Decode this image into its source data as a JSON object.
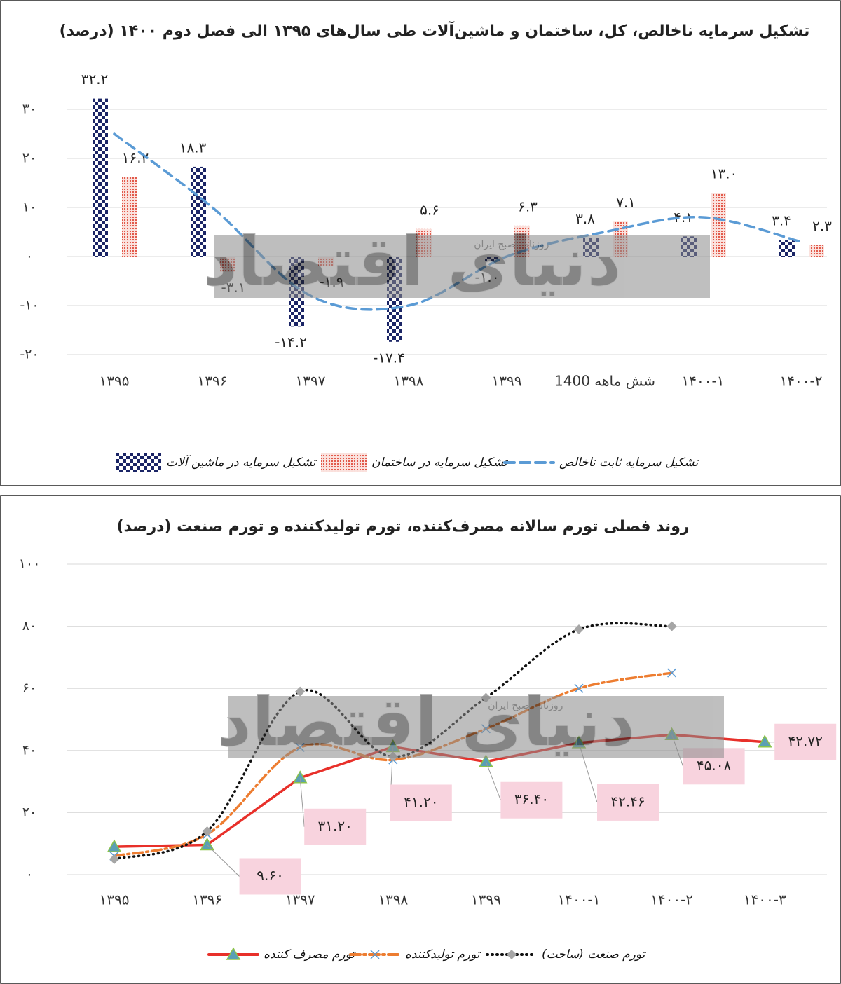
{
  "chart_data": [
    {
      "type": "bar",
      "title": "تشکیل سرمایه ناخالص، کل، ساختمان و ماشین‌آلات طی سال‌های ۱۳۹۵ الی فصل دوم ۱۴۰۰ (درصد)",
      "categories": [
        "۱۳۹۵",
        "۱۳۹۶",
        "۱۳۹۷",
        "۱۳۹۸",
        "۱۳۹۹",
        "شش ماهه 1400",
        "۱۴۰۰-۱",
        "۱۴۰۰-۲"
      ],
      "series": [
        {
          "name": "تشکیل سرمایه در ماشین آلات",
          "color": "#1b2566",
          "pattern": "checker",
          "values": [
            32.2,
            18.3,
            -14.2,
            -17.4,
            -1.0,
            3.8,
            4.1,
            3.4
          ],
          "value_labels": [
            "۳۲.۲",
            "۱۸.۳",
            "-۱۴.۲",
            "-۱۷.۴",
            "-۱.۰",
            "۳.۸",
            "۴.۱",
            "۳.۴"
          ]
        },
        {
          "name": "تشکیل سرمایه در ساختمان",
          "color": "#e04a3a",
          "pattern": "dots",
          "values": [
            16.2,
            -3.1,
            -1.9,
            5.6,
            6.3,
            7.1,
            13.0,
            2.3
          ],
          "value_labels": [
            "۱۶.۲",
            "-۳.۱",
            "-۱.۹",
            "۵.۶",
            "۶.۳",
            "۷.۱",
            "۱۳.۰",
            "۲.۳"
          ]
        },
        {
          "name": "تشکیل سرمایه ثابت ناخالص",
          "type": "line",
          "color": "#5b9bd5",
          "dash": "dashed",
          "smooth": true,
          "values": [
            25,
            10,
            -8,
            -10,
            0,
            5,
            8,
            3
          ]
        }
      ],
      "ylim": [
        -20,
        30
      ],
      "yticks": [
        {
          "value": -20,
          "label": "-۲۰"
        },
        {
          "value": -10,
          "label": "-۱۰"
        },
        {
          "value": 0,
          "label": "۰"
        },
        {
          "value": 10,
          "label": "۱۰"
        },
        {
          "value": 20,
          "label": "۲۰"
        },
        {
          "value": 30,
          "label": "۳۰"
        }
      ],
      "grid": true,
      "watermark": {
        "text": "دنیای اقتصاد",
        "subtext": "روزنامه صبح ایران"
      }
    },
    {
      "type": "line",
      "title": "روند فصلی تورم سالانه مصرف‌کننده، تورم تولیدکننده و تورم صنعت (درصد)",
      "categories": [
        "۱۳۹۵",
        "۱۳۹۶",
        "۱۳۹۷",
        "۱۳۹۸",
        "۱۳۹۹",
        "۱۴۰۰-۱",
        "۱۴۰۰-۲",
        "۱۴۰۰-۳"
      ],
      "series": [
        {
          "name": "تورم مصرف کننده",
          "color": "#e8302a",
          "dash": "solid",
          "marker": "triangle",
          "marker_color": "#5aa0b4",
          "values": [
            9.0,
            9.6,
            31.2,
            41.2,
            36.4,
            42.46,
            45.08,
            42.72
          ],
          "value_labels": [
            null,
            "۹.۶۰",
            "۳۱.۲۰",
            "۴۱.۲۰",
            "۳۶.۴۰",
            "۴۲.۴۶",
            "۴۵.۰۸",
            "۴۲.۷۲"
          ]
        },
        {
          "name": "تورم تولیدکننده",
          "color": "#ed7d31",
          "dash": "dashdot",
          "marker": "x",
          "marker_color": "#5b9bd5",
          "smooth": true,
          "values": [
            6,
            13,
            41,
            37,
            47,
            60,
            65,
            null
          ]
        },
        {
          "name": "تورم صنعت (ساخت)",
          "color": "#111111",
          "dash": "dotted",
          "marker": "diamond",
          "marker_color": "#a6a6a6",
          "smooth": true,
          "values": [
            5,
            14,
            59,
            38,
            57,
            79,
            80,
            null
          ]
        }
      ],
      "ylim": [
        0,
        100
      ],
      "yticks": [
        {
          "value": 0,
          "label": "۰"
        },
        {
          "value": 20,
          "label": "۲۰"
        },
        {
          "value": 40,
          "label": "۴۰"
        },
        {
          "value": 60,
          "label": "۶۰"
        },
        {
          "value": 80,
          "label": "۸۰"
        },
        {
          "value": 100,
          "label": "۱۰۰"
        }
      ],
      "grid": true,
      "watermark": {
        "text": "دنیای اقتصاد",
        "subtext": "روزنامه صبح ایران"
      }
    }
  ]
}
